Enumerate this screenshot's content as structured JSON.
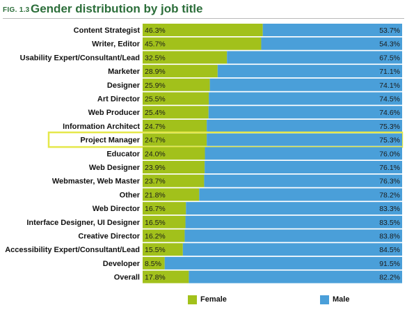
{
  "header": {
    "fig_label": "FIG. 1.3",
    "title": "Gender distribution by job title"
  },
  "colors": {
    "female": "#a2c11b",
    "male": "#4a9fd9",
    "highlight": "#e5e84a",
    "title": "#2c6e3a"
  },
  "chart_data": {
    "type": "bar",
    "stacked": true,
    "orientation": "horizontal",
    "title": "Gender distribution by job title",
    "categories": [
      "Content Strategist",
      "Writer, Editor",
      "Usability Expert/Consultant/Lead",
      "Marketer",
      "Designer",
      "Art Director",
      "Web Producer",
      "Information Architect",
      "Project Manager",
      "Educator",
      "Web Designer",
      "Webmaster, Web Master",
      "Other",
      "Web Director",
      "Interface Designer, UI Designer",
      "Creative Director",
      "Accessibility Expert/Consultant/Lead",
      "Developer",
      "Overall"
    ],
    "series": [
      {
        "name": "Female",
        "values": [
          46.3,
          45.7,
          32.5,
          28.9,
          25.9,
          25.5,
          25.4,
          24.7,
          24.7,
          24.0,
          23.9,
          23.7,
          21.8,
          16.7,
          16.5,
          16.2,
          15.5,
          8.5,
          17.8
        ],
        "labels": [
          "46.3%",
          "45.7%",
          "32.5%",
          "28.9%",
          "25.9%",
          "25.5%",
          "25.4%",
          "24.7%",
          "24.7%",
          "24.0%",
          "23.9%",
          "23.7%",
          "21.8%",
          "16.7%",
          "16.5%",
          "16.2%",
          "15.5%",
          "8.5%",
          "17.8%"
        ]
      },
      {
        "name": "Male",
        "values": [
          53.7,
          54.3,
          67.5,
          71.1,
          74.1,
          74.5,
          74.6,
          75.3,
          75.3,
          76.0,
          76.1,
          76.3,
          78.2,
          83.3,
          83.5,
          83.8,
          84.5,
          91.5,
          82.2
        ],
        "labels": [
          "53.7%",
          "54.3%",
          "67.5%",
          "71.1%",
          "74.1%",
          "74.5%",
          "74.6%",
          "75.3%",
          "75.3%",
          "76.0%",
          "76.1%",
          "76.3%",
          "78.2%",
          "83.3%",
          "83.5%",
          "83.8%",
          "84.5%",
          "91.5%",
          "82.2%"
        ]
      }
    ],
    "highlighted_category": "Project Manager",
    "xlim": [
      0,
      100
    ],
    "legend": {
      "position": "bottom",
      "entries": [
        "Female",
        "Male"
      ]
    }
  }
}
